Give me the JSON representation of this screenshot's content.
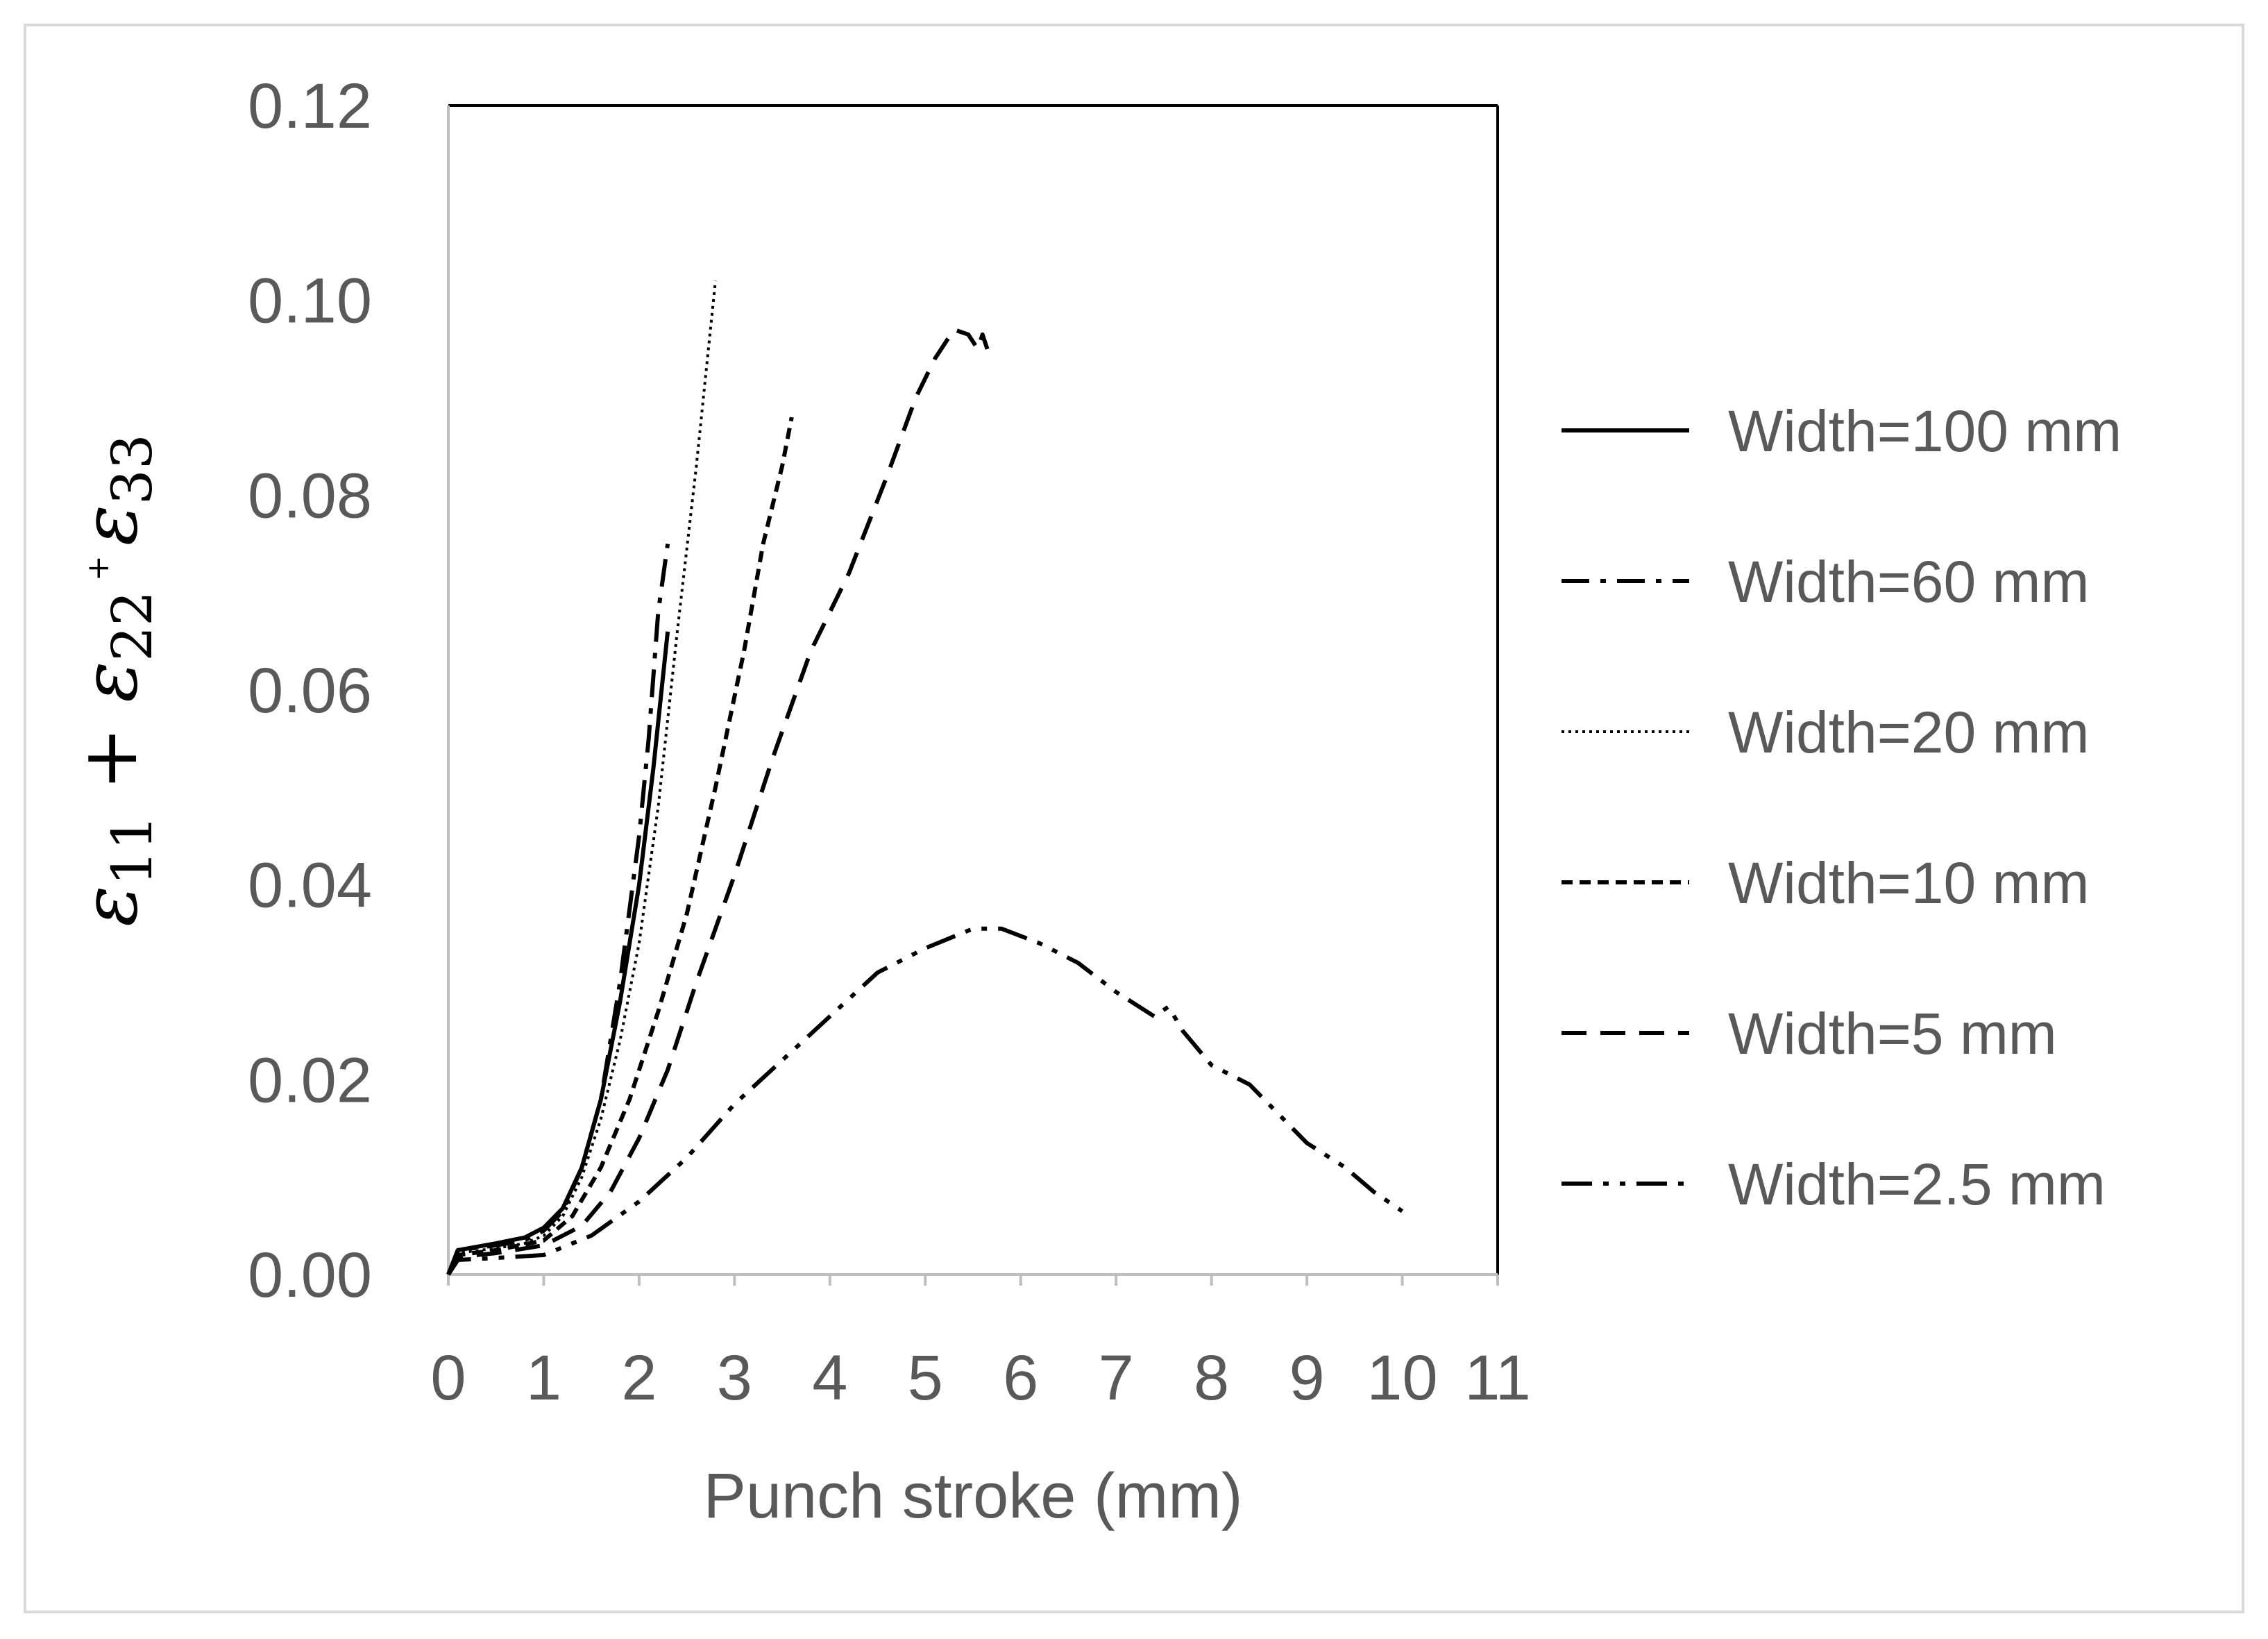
{
  "chart_data": {
    "type": "line",
    "xlabel": "Punch stroke (mm)",
    "ylabel": {
      "parts": [
        "ε",
        "11",
        " + ",
        "ε",
        "22",
        " + ",
        "ε",
        "33"
      ]
    },
    "xlim": [
      0,
      11
    ],
    "ylim": [
      0,
      0.12
    ],
    "x_ticks": [
      "0",
      "1",
      "2",
      "3",
      "4",
      "5",
      "6",
      "7",
      "8",
      "9",
      "10",
      "11"
    ],
    "y_ticks": [
      "0.00",
      "0.02",
      "0.04",
      "0.06",
      "0.08",
      "0.10",
      "0.12"
    ],
    "grid": false,
    "legend_position": "right",
    "series": [
      {
        "name": "Width=100 mm",
        "dash": "solid",
        "points": [
          [
            0,
            0
          ],
          [
            0.1,
            0.0025
          ],
          [
            0.5,
            0.0032
          ],
          [
            0.8,
            0.0038
          ],
          [
            1.0,
            0.0048
          ],
          [
            1.2,
            0.0068
          ],
          [
            1.4,
            0.011
          ],
          [
            1.6,
            0.018
          ],
          [
            1.8,
            0.028
          ],
          [
            2.0,
            0.04
          ],
          [
            2.15,
            0.052
          ],
          [
            2.3,
            0.066
          ]
        ]
      },
      {
        "name": "Width=60 mm",
        "dash": "dash-dot",
        "points": [
          [
            0,
            0
          ],
          [
            0.1,
            0.0025
          ],
          [
            0.5,
            0.003
          ],
          [
            0.8,
            0.0035
          ],
          [
            1.0,
            0.0045
          ],
          [
            1.2,
            0.0065
          ],
          [
            1.4,
            0.011
          ],
          [
            1.6,
            0.018
          ],
          [
            1.8,
            0.03
          ],
          [
            2.0,
            0.045
          ],
          [
            2.1,
            0.055
          ],
          [
            2.2,
            0.068
          ],
          [
            2.3,
            0.075
          ]
        ]
      },
      {
        "name": "Width=20 mm",
        "dash": "dotted",
        "points": [
          [
            0,
            0
          ],
          [
            0.1,
            0.0022
          ],
          [
            0.5,
            0.0027
          ],
          [
            0.8,
            0.0032
          ],
          [
            1.0,
            0.004
          ],
          [
            1.2,
            0.006
          ],
          [
            1.4,
            0.01
          ],
          [
            1.6,
            0.016
          ],
          [
            1.8,
            0.024
          ],
          [
            2.0,
            0.034
          ],
          [
            2.2,
            0.048
          ],
          [
            2.4,
            0.066
          ],
          [
            2.6,
            0.083
          ],
          [
            2.8,
            0.102
          ]
        ]
      },
      {
        "name": "Width=10 mm",
        "dash": "short-dash",
        "points": [
          [
            0,
            0
          ],
          [
            0.1,
            0.002
          ],
          [
            0.5,
            0.0025
          ],
          [
            1.0,
            0.0035
          ],
          [
            1.3,
            0.006
          ],
          [
            1.6,
            0.011
          ],
          [
            1.9,
            0.018
          ],
          [
            2.2,
            0.027
          ],
          [
            2.5,
            0.037
          ],
          [
            2.8,
            0.05
          ],
          [
            3.1,
            0.064
          ],
          [
            3.3,
            0.075
          ],
          [
            3.5,
            0.083
          ],
          [
            3.6,
            0.088
          ]
        ]
      },
      {
        "name": "Width=5 mm",
        "dash": "long-dash",
        "points": [
          [
            0,
            0
          ],
          [
            0.1,
            0.0018
          ],
          [
            0.5,
            0.0022
          ],
          [
            1.0,
            0.003
          ],
          [
            1.4,
            0.005
          ],
          [
            1.7,
            0.0085
          ],
          [
            2.0,
            0.014
          ],
          [
            2.3,
            0.021
          ],
          [
            2.6,
            0.03
          ],
          [
            3.0,
            0.041
          ],
          [
            3.4,
            0.053
          ],
          [
            3.8,
            0.064
          ],
          [
            4.2,
            0.072
          ],
          [
            4.6,
            0.082
          ],
          [
            4.9,
            0.09
          ],
          [
            5.1,
            0.094
          ],
          [
            5.3,
            0.097
          ],
          [
            5.45,
            0.0965
          ],
          [
            5.55,
            0.095
          ],
          [
            5.6,
            0.0965
          ],
          [
            5.65,
            0.095
          ]
        ]
      },
      {
        "name": "Width=2.5 mm",
        "dash": "dash-dot-dot",
        "points": [
          [
            0,
            0
          ],
          [
            0.1,
            0.0015
          ],
          [
            0.5,
            0.0017
          ],
          [
            1.0,
            0.002
          ],
          [
            1.5,
            0.004
          ],
          [
            2.0,
            0.0075
          ],
          [
            2.5,
            0.012
          ],
          [
            3.0,
            0.0175
          ],
          [
            3.5,
            0.022
          ],
          [
            4.0,
            0.0265
          ],
          [
            4.5,
            0.031
          ],
          [
            5.0,
            0.0335
          ],
          [
            5.5,
            0.0355
          ],
          [
            5.8,
            0.0355
          ],
          [
            6.2,
            0.034
          ],
          [
            6.6,
            0.032
          ],
          [
            7.0,
            0.029
          ],
          [
            7.4,
            0.0265
          ],
          [
            7.55,
            0.0275
          ],
          [
            7.7,
            0.025
          ],
          [
            8.0,
            0.0215
          ],
          [
            8.4,
            0.0195
          ],
          [
            8.7,
            0.0165
          ],
          [
            9.0,
            0.0135
          ],
          [
            9.4,
            0.011
          ],
          [
            9.7,
            0.0085
          ],
          [
            10.0,
            0.0065
          ]
        ]
      }
    ]
  }
}
